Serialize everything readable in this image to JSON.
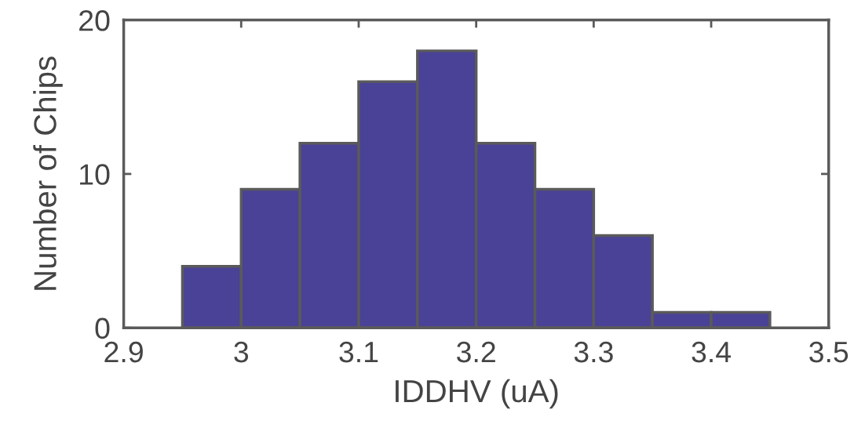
{
  "chart_data": {
    "type": "histogram",
    "xlabel": "IDDHV (uA)",
    "ylabel": "Number of Chips",
    "bins": [
      2.95,
      3.0,
      3.05,
      3.1,
      3.15,
      3.2,
      3.25,
      3.3,
      3.35,
      3.4,
      3.45
    ],
    "values": [
      4,
      9,
      12,
      16,
      18,
      12,
      9,
      6,
      1,
      1
    ],
    "color": "#4a4296",
    "xlim": [
      2.9,
      3.5
    ],
    "xticks": [
      2.9,
      3,
      3.1,
      3.2,
      3.3,
      3.4,
      3.5
    ],
    "ylim": [
      0,
      20
    ],
    "yticks": [
      0,
      10,
      20
    ],
    "grid": false
  }
}
